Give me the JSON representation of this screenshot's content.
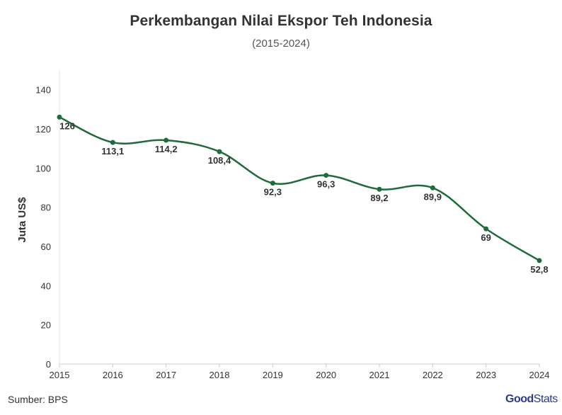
{
  "chart_data": {
    "type": "line",
    "title": "Perkembangan Nilai Ekspor Teh Indonesia",
    "subtitle": "(2015-2024)",
    "xlabel": "",
    "ylabel": "Juta US$",
    "ylim": [
      0,
      150
    ],
    "yticks": [
      0,
      20,
      40,
      60,
      80,
      100,
      120,
      140
    ],
    "categories": [
      "2015",
      "2016",
      "2017",
      "2018",
      "2019",
      "2020",
      "2021",
      "2022",
      "2023",
      "2024"
    ],
    "series": [
      {
        "values": [
          126,
          113.1,
          114.2,
          108.4,
          92.3,
          96.3,
          89.2,
          89.9,
          69,
          52.8
        ],
        "data_labels": [
          "126",
          "113,1",
          "114,2",
          "108,4",
          "92,3",
          "96,3",
          "89,2",
          "89,9",
          "69",
          "52,8"
        ],
        "color": "#1f6b3a"
      }
    ],
    "grid": false,
    "legend": "none"
  },
  "footer": {
    "source": "Sumber: BPS",
    "brand_good": "Good",
    "brand_stats": "Stats"
  },
  "colors": {
    "line": "#1f6b3a",
    "axis": "#cccccc",
    "text": "#333333",
    "brand": "#2b3a8c"
  }
}
